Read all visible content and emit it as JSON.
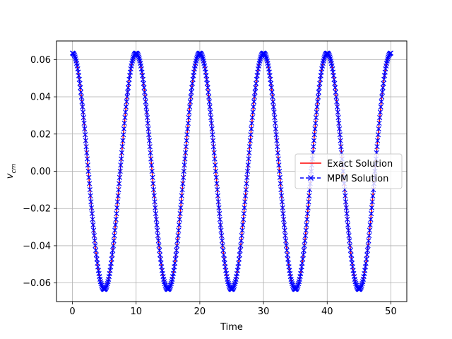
{
  "chart_data": {
    "type": "line",
    "title": "",
    "xlabel": "Time",
    "ylabel": "v",
    "ylabel_subscript": "cm",
    "xlim": [
      -2.5,
      52.5
    ],
    "ylim": [
      -0.07,
      0.07
    ],
    "xticks": [
      0,
      10,
      20,
      30,
      40,
      50
    ],
    "yticks": [
      -0.06,
      -0.04,
      -0.02,
      0.0,
      0.02,
      0.04,
      0.06
    ],
    "xtick_labels": [
      "0",
      "10",
      "20",
      "30",
      "40",
      "50"
    ],
    "ytick_labels": [
      "−0.06",
      "−0.04",
      "−0.02",
      "0.00",
      "0.02",
      "0.04",
      "0.06"
    ],
    "grid": true,
    "legend_position": "center-right",
    "series": [
      {
        "name": "Exact Solution",
        "style": "solid",
        "color": "#ff0000",
        "function": "0.0635*cos(2*pi*t/10)",
        "x_range": [
          0,
          50
        ]
      },
      {
        "name": "MPM Solution",
        "style": "dashed-x-markers",
        "color": "#0000ff",
        "function": "0.0635*cos(2*pi*t/10)",
        "x_range": [
          0,
          50
        ],
        "amplitude": 0.0635,
        "period": 10
      }
    ]
  }
}
